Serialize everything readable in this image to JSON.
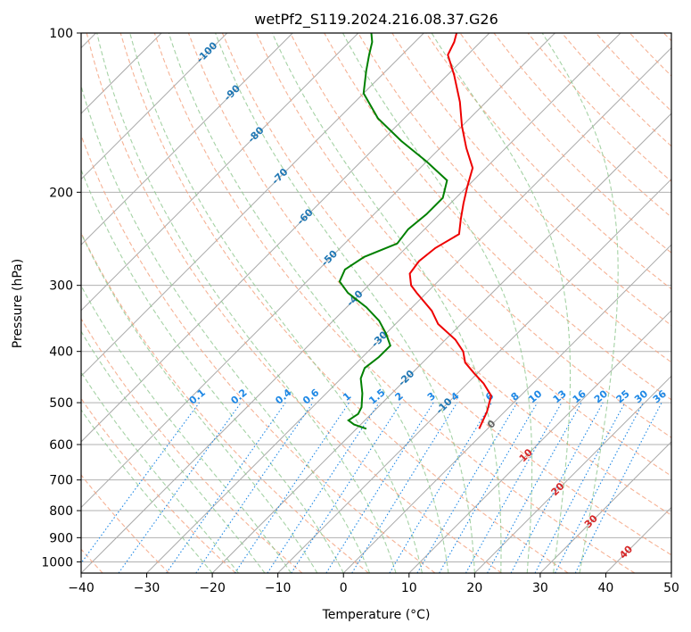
{
  "chart_data": {
    "type": "skew-t",
    "title": "wetPf2_S119.2024.216.08.37.G26",
    "xlabel": "Temperature (°C)",
    "ylabel": "Pressure (hPa)",
    "xlim": [
      -40,
      50
    ],
    "ylim": [
      1050,
      100
    ],
    "y_scale": "log",
    "grid": true,
    "x_ticks": [
      "−40",
      "−30",
      "−20",
      "−10",
      "0",
      "10",
      "20",
      "30",
      "40",
      "50"
    ],
    "x_tick_values": [
      -40,
      -30,
      -20,
      -10,
      0,
      10,
      20,
      30,
      40,
      50
    ],
    "y_ticks": [
      "100",
      "200",
      "300",
      "400",
      "500",
      "600",
      "700",
      "800",
      "900",
      "1000"
    ],
    "y_tick_values": [
      100,
      200,
      300,
      400,
      500,
      600,
      700,
      800,
      900,
      1000
    ],
    "colors": {
      "temperature": "#ee0000",
      "dewpoint": "#008000",
      "dry_adiabat": "#f4a582",
      "moist_adiabat": "#8fc78f",
      "mixing_ratio": "#1e88e5",
      "isotherm": "#999999",
      "isotherm_label_neg": "#1f77b4",
      "isotherm_label_pos": "#d62728"
    },
    "isotherm_labels": [
      {
        "value": -100,
        "text": "-100",
        "p": 109
      },
      {
        "value": -90,
        "text": "-90",
        "p": 130
      },
      {
        "value": -80,
        "text": "-80",
        "p": 156
      },
      {
        "value": -70,
        "text": "-70",
        "p": 187
      },
      {
        "value": -60,
        "text": "-60",
        "p": 223
      },
      {
        "value": -50,
        "text": "-50",
        "p": 267
      },
      {
        "value": -40,
        "text": "-40",
        "p": 318
      },
      {
        "value": -30,
        "text": "-30",
        "p": 380
      },
      {
        "value": -20,
        "text": "-20",
        "p": 450
      },
      {
        "value": -10,
        "text": "-10",
        "p": 508
      },
      {
        "value": 0,
        "text": "0",
        "p": 550
      },
      {
        "value": 10,
        "text": "10",
        "p": 630
      },
      {
        "value": 20,
        "text": "20",
        "p": 730
      },
      {
        "value": 30,
        "text": "30",
        "p": 840
      },
      {
        "value": 40,
        "text": "40",
        "p": 960
      }
    ],
    "mixing_ratio_labels": [
      "0.1",
      "0.2",
      "0.4",
      "0.6",
      "1",
      "1.5",
      "2",
      "3",
      "4",
      "6",
      "8",
      "10",
      "13",
      "16",
      "20",
      "25",
      "30",
      "36"
    ],
    "series": [
      {
        "name": "Temperature",
        "points": [
          {
            "p": 560,
            "t": -1.3
          },
          {
            "p": 520,
            "t": -2.7
          },
          {
            "p": 485,
            "t": -4.5
          },
          {
            "p": 460,
            "t": -7.5
          },
          {
            "p": 440,
            "t": -10.5
          },
          {
            "p": 420,
            "t": -13.5
          },
          {
            "p": 400,
            "t": -15.5
          },
          {
            "p": 380,
            "t": -18.5
          },
          {
            "p": 355,
            "t": -23.5
          },
          {
            "p": 335,
            "t": -26.5
          },
          {
            "p": 310,
            "t": -31.5
          },
          {
            "p": 300,
            "t": -33.5
          },
          {
            "p": 285,
            "t": -35.5
          },
          {
            "p": 270,
            "t": -36
          },
          {
            "p": 255,
            "t": -35.5
          },
          {
            "p": 240,
            "t": -34
          },
          {
            "p": 225,
            "t": -36
          },
          {
            "p": 210,
            "t": -38
          },
          {
            "p": 195,
            "t": -40
          },
          {
            "p": 180,
            "t": -42
          },
          {
            "p": 165,
            "t": -46
          },
          {
            "p": 150,
            "t": -50
          },
          {
            "p": 135,
            "t": -54
          },
          {
            "p": 120,
            "t": -59
          },
          {
            "p": 110,
            "t": -63
          },
          {
            "p": 104,
            "t": -64
          },
          {
            "p": 100,
            "t": -65
          }
        ]
      },
      {
        "name": "Dewpoint",
        "points": [
          {
            "p": 560,
            "t": -18.5
          },
          {
            "p": 550,
            "t": -21
          },
          {
            "p": 540,
            "t": -22.5
          },
          {
            "p": 525,
            "t": -22
          },
          {
            "p": 510,
            "t": -22.5
          },
          {
            "p": 480,
            "t": -24.5
          },
          {
            "p": 450,
            "t": -27
          },
          {
            "p": 430,
            "t": -28
          },
          {
            "p": 410,
            "t": -27.5
          },
          {
            "p": 390,
            "t": -27.5
          },
          {
            "p": 370,
            "t": -30
          },
          {
            "p": 350,
            "t": -33
          },
          {
            "p": 330,
            "t": -37
          },
          {
            "p": 310,
            "t": -42
          },
          {
            "p": 295,
            "t": -45
          },
          {
            "p": 280,
            "t": -46
          },
          {
            "p": 265,
            "t": -45
          },
          {
            "p": 250,
            "t": -42
          },
          {
            "p": 235,
            "t": -42.5
          },
          {
            "p": 220,
            "t": -42
          },
          {
            "p": 205,
            "t": -42
          },
          {
            "p": 190,
            "t": -44
          },
          {
            "p": 175,
            "t": -50
          },
          {
            "p": 160,
            "t": -57
          },
          {
            "p": 145,
            "t": -64
          },
          {
            "p": 130,
            "t": -70
          },
          {
            "p": 118,
            "t": -73
          },
          {
            "p": 110,
            "t": -75
          },
          {
            "p": 104,
            "t": -76.5
          },
          {
            "p": 100,
            "t": -78
          }
        ]
      }
    ]
  }
}
